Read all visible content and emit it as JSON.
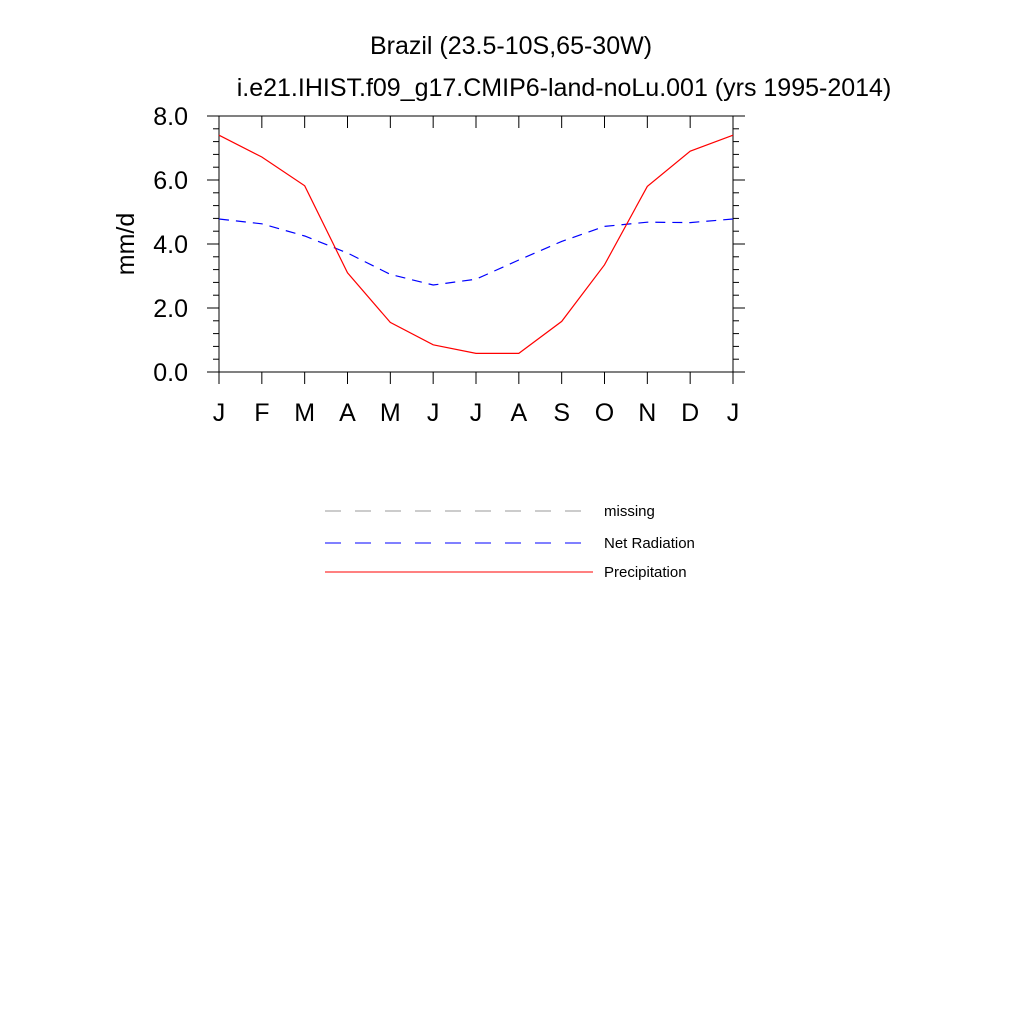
{
  "chart_data": {
    "type": "line",
    "title": "Brazil (23.5-10S,65-30W)",
    "subtitle": "i.e21.IHIST.f09_g17.CMIP6-land-noLu.001 (yrs 1995-2014)",
    "ylabel": "mm/d",
    "xlabel": "",
    "categories": [
      "J",
      "F",
      "M",
      "A",
      "M",
      "J",
      "J",
      "A",
      "S",
      "O",
      "N",
      "D",
      "J"
    ],
    "ylim": [
      0,
      8
    ],
    "yticks": [
      0,
      2,
      4,
      6,
      8
    ],
    "ytick_labels": [
      "0.0",
      "2.0",
      "4.0",
      "6.0",
      "8.0"
    ],
    "grid": false,
    "legend_position": "bottom",
    "series": [
      {
        "name": "Net Radiation",
        "color": "#0000ff",
        "dash": "dashed",
        "values": [
          4.78,
          4.63,
          4.25,
          3.72,
          3.05,
          2.72,
          2.9,
          3.5,
          4.08,
          4.55,
          4.68,
          4.67,
          4.78
        ]
      },
      {
        "name": "Precipitation",
        "color": "#ff0000",
        "dash": "solid",
        "values": [
          7.4,
          6.72,
          5.82,
          3.1,
          1.55,
          0.85,
          0.58,
          0.58,
          1.58,
          3.35,
          5.8,
          6.9,
          7.4
        ]
      }
    ],
    "legend": [
      {
        "label": "missing",
        "color": "#999999",
        "dash": "dashed"
      },
      {
        "label": "Net Radiation",
        "color": "#0000ff",
        "dash": "dashed"
      },
      {
        "label": "Precipitation",
        "color": "#ff0000",
        "dash": "solid"
      }
    ]
  }
}
